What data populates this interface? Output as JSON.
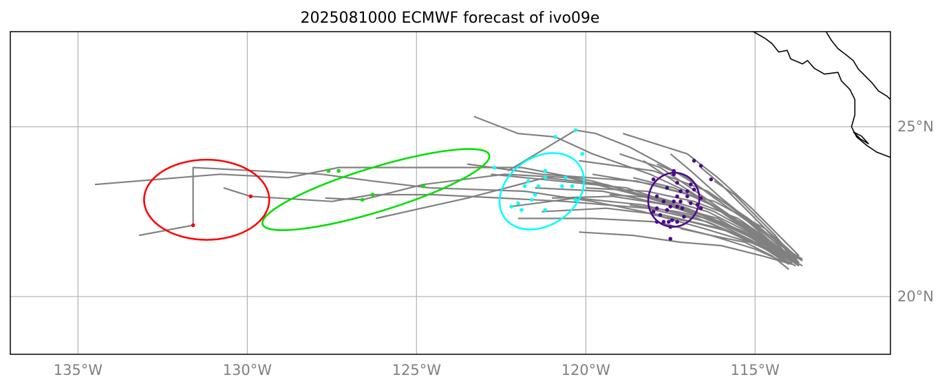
{
  "title": "2025081000 ECMWF forecast of ivo09e",
  "map": {
    "lon_range": [
      -137,
      -111
    ],
    "lat_range": [
      18.3,
      27.8
    ],
    "x_ticks": [
      {
        "lon": -135,
        "label": "135°W"
      },
      {
        "lon": -130,
        "label": "130°W"
      },
      {
        "lon": -125,
        "label": "125°W"
      },
      {
        "lon": -120,
        "label": "120°W"
      },
      {
        "lon": -115,
        "label": "115°W"
      }
    ],
    "y_ticks": [
      {
        "lat": 20,
        "label": "20°N"
      },
      {
        "lat": 25,
        "label": "25°N"
      }
    ],
    "grid": true,
    "colors": {
      "track": "#808080",
      "grid": "#b0b0b0",
      "coast": "#000000",
      "tick_text": "#808080"
    }
  },
  "coastline": [
    [
      [
        -115.05,
        27.8
      ],
      [
        -114.7,
        27.6
      ],
      [
        -114.5,
        27.45
      ],
      [
        -114.3,
        27.2
      ],
      [
        -114.05,
        27.25
      ],
      [
        -113.95,
        27.0
      ],
      [
        -113.6,
        26.85
      ],
      [
        -113.45,
        26.95
      ],
      [
        -113.25,
        26.72
      ],
      [
        -112.95,
        26.55
      ],
      [
        -112.55,
        26.6
      ],
      [
        -112.45,
        26.35
      ],
      [
        -112.2,
        26.1
      ],
      [
        -112.05,
        25.8
      ],
      [
        -112.05,
        25.35
      ],
      [
        -112.15,
        25.0
      ],
      [
        -112.0,
        24.7
      ],
      [
        -111.7,
        24.45
      ],
      [
        -111.4,
        24.25
      ],
      [
        -111.0,
        24.1
      ]
    ],
    [
      [
        -112.1,
        24.85
      ],
      [
        -111.9,
        24.65
      ],
      [
        -111.65,
        24.5
      ],
      [
        -111.85,
        24.72
      ],
      [
        -112.1,
        24.85
      ]
    ],
    [
      [
        -112.9,
        27.8
      ],
      [
        -112.75,
        27.55
      ],
      [
        -112.55,
        27.3
      ],
      [
        -112.35,
        27.15
      ],
      [
        -112.1,
        26.95
      ],
      [
        -111.95,
        26.7
      ],
      [
        -111.75,
        26.5
      ],
      [
        -111.55,
        26.3
      ],
      [
        -111.35,
        26.05
      ],
      [
        -111.1,
        25.9
      ],
      [
        -111.0,
        25.8
      ]
    ]
  ],
  "tracks": [
    [
      [
        -134.5,
        23.3
      ],
      [
        -130.8,
        23.6
      ],
      [
        -128.8,
        23.5
      ],
      [
        -127.3,
        23.8
      ],
      [
        -125,
        23.8
      ],
      [
        -121.9,
        23.8
      ],
      [
        -119.8,
        23.4
      ],
      [
        -118,
        22.9
      ],
      [
        -116.3,
        22.3
      ],
      [
        -114.6,
        21.6
      ],
      [
        -113.7,
        21.0
      ]
    ],
    [
      [
        -133.2,
        21.8
      ],
      [
        -131.6,
        22.1
      ],
      [
        -131.6,
        23.8
      ],
      [
        -127.8,
        23.6
      ],
      [
        -126.3,
        23.4
      ],
      [
        -124.6,
        23.2
      ],
      [
        -121.8,
        23.1
      ],
      [
        -119.8,
        22.8
      ],
      [
        -118.3,
        22.5
      ],
      [
        -116.5,
        22.0
      ],
      [
        -114.5,
        21.4
      ],
      [
        -113.6,
        21.1
      ]
    ],
    [
      [
        -130.7,
        23.2
      ],
      [
        -129.9,
        22.95
      ],
      [
        -127.5,
        22.8
      ],
      [
        -126.3,
        23.0
      ],
      [
        -124.5,
        23.0
      ],
      [
        -122.5,
        22.9
      ],
      [
        -120.6,
        22.8
      ],
      [
        -118.2,
        22.6
      ],
      [
        -116.4,
        22.2
      ],
      [
        -114.8,
        21.5
      ],
      [
        -113.8,
        21.0
      ]
    ],
    [
      [
        -127.7,
        22.9
      ],
      [
        -126.6,
        22.85
      ],
      [
        -124.8,
        23.3
      ],
      [
        -122.4,
        23.6
      ],
      [
        -120.5,
        23.5
      ],
      [
        -118.5,
        23.0
      ],
      [
        -116.8,
        22.5
      ],
      [
        -115.0,
        21.7
      ],
      [
        -114.0,
        21.1
      ]
    ],
    [
      [
        -126.2,
        22.3
      ],
      [
        -123.5,
        22.9
      ],
      [
        -121.2,
        23.5
      ],
      [
        -119.4,
        23.3
      ],
      [
        -117.7,
        22.8
      ],
      [
        -116.0,
        22.1
      ],
      [
        -114.4,
        21.3
      ],
      [
        -113.7,
        20.95
      ]
    ],
    [
      [
        -123.3,
        25.3
      ],
      [
        -122.0,
        24.8
      ],
      [
        -120.9,
        24.7
      ],
      [
        -119.8,
        24.2
      ],
      [
        -118.1,
        23.6
      ],
      [
        -116.6,
        22.9
      ],
      [
        -115.1,
        21.9
      ],
      [
        -114.0,
        21.2
      ]
    ],
    [
      [
        -122.3,
        23.7
      ],
      [
        -120.3,
        24.9
      ],
      [
        -119.7,
        24.8
      ],
      [
        -118.7,
        24.4
      ],
      [
        -117.4,
        23.7
      ],
      [
        -115.8,
        22.7
      ],
      [
        -114.4,
        21.6
      ],
      [
        -113.6,
        21.1
      ]
    ],
    [
      [
        -118.9,
        24.8
      ],
      [
        -117.0,
        24.2
      ],
      [
        -116.1,
        23.5
      ],
      [
        -115.1,
        22.6
      ],
      [
        -114.3,
        21.8
      ],
      [
        -113.7,
        21.2
      ]
    ],
    [
      [
        -120.2,
        24.0
      ],
      [
        -118.0,
        23.7
      ],
      [
        -116.4,
        23.1
      ],
      [
        -115.2,
        22.3
      ],
      [
        -114.2,
        21.5
      ],
      [
        -113.8,
        21.0
      ]
    ],
    [
      [
        -123.5,
        23.9
      ],
      [
        -121.3,
        23.6
      ],
      [
        -118.5,
        23.4
      ],
      [
        -116.2,
        22.8
      ],
      [
        -114.7,
        22.0
      ],
      [
        -113.8,
        21.2
      ]
    ],
    [
      [
        -122.8,
        23.6
      ],
      [
        -120.8,
        23.4
      ],
      [
        -118.8,
        23.2
      ],
      [
        -117.0,
        22.6
      ],
      [
        -115.3,
        21.9
      ],
      [
        -114.1,
        21.2
      ]
    ],
    [
      [
        -121.5,
        23.2
      ],
      [
        -119.5,
        23.1
      ],
      [
        -117.6,
        22.7
      ],
      [
        -115.9,
        22.1
      ],
      [
        -114.6,
        21.5
      ],
      [
        -113.9,
        21.0
      ]
    ],
    [
      [
        -122.2,
        22.65
      ],
      [
        -120.3,
        22.9
      ],
      [
        -118.3,
        22.7
      ],
      [
        -116.7,
        22.3
      ],
      [
        -115.2,
        21.7
      ],
      [
        -114.0,
        21.0
      ]
    ],
    [
      [
        -121.3,
        22.5
      ],
      [
        -119.4,
        22.6
      ],
      [
        -117.7,
        22.4
      ],
      [
        -116.0,
        22.0
      ],
      [
        -114.7,
        21.4
      ],
      [
        -113.8,
        20.9
      ]
    ],
    [
      [
        -120.2,
        21.9
      ],
      [
        -118.6,
        21.8
      ],
      [
        -117.2,
        21.6
      ],
      [
        -116.0,
        21.5
      ],
      [
        -114.8,
        21.2
      ],
      [
        -113.9,
        20.95
      ]
    ],
    [
      [
        -122.0,
        22.3
      ],
      [
        -119.8,
        22.3
      ],
      [
        -117.9,
        22.2
      ],
      [
        -116.3,
        21.8
      ],
      [
        -115.0,
        21.4
      ],
      [
        -114.1,
        21.0
      ]
    ],
    [
      [
        -118.3,
        24.0
      ],
      [
        -117.4,
        23.4
      ],
      [
        -116.3,
        22.7
      ],
      [
        -115.3,
        22.0
      ],
      [
        -114.4,
        21.4
      ],
      [
        -113.8,
        21.1
      ]
    ],
    [
      [
        -117.5,
        24.2
      ],
      [
        -116.9,
        23.7
      ],
      [
        -116.0,
        22.9
      ],
      [
        -115.0,
        22.1
      ],
      [
        -114.3,
        21.5
      ],
      [
        -113.9,
        21.1
      ]
    ],
    [
      [
        -116.6,
        23.8
      ],
      [
        -116.0,
        23.3
      ],
      [
        -115.3,
        22.6
      ],
      [
        -114.6,
        21.9
      ],
      [
        -114.1,
        21.4
      ],
      [
        -113.7,
        21.0
      ]
    ],
    [
      [
        -116.2,
        23.4
      ],
      [
        -115.6,
        23.0
      ],
      [
        -115.0,
        22.4
      ],
      [
        -114.4,
        21.8
      ],
      [
        -114.0,
        21.3
      ],
      [
        -113.6,
        21.05
      ]
    ],
    [
      [
        -120.0,
        23.2
      ],
      [
        -118.2,
        23.1
      ],
      [
        -116.8,
        22.8
      ],
      [
        -115.5,
        22.3
      ],
      [
        -114.5,
        21.6
      ],
      [
        -113.8,
        21.05
      ]
    ],
    [
      [
        -119.3,
        23.0
      ],
      [
        -117.8,
        22.9
      ],
      [
        -116.4,
        22.5
      ],
      [
        -115.2,
        21.9
      ],
      [
        -114.3,
        21.3
      ],
      [
        -113.7,
        20.9
      ]
    ],
    [
      [
        -118.7,
        22.7
      ],
      [
        -117.3,
        22.5
      ],
      [
        -116.0,
        22.2
      ],
      [
        -114.9,
        21.7
      ],
      [
        -114.1,
        21.2
      ],
      [
        -113.6,
        20.9
      ]
    ],
    [
      [
        -119.8,
        23.6
      ],
      [
        -118.0,
        23.3
      ],
      [
        -116.6,
        22.9
      ],
      [
        -115.3,
        22.1
      ],
      [
        -114.4,
        21.4
      ],
      [
        -113.7,
        20.95
      ]
    ],
    [
      [
        -117.9,
        23.9
      ],
      [
        -117.0,
        23.5
      ],
      [
        -116.2,
        22.9
      ],
      [
        -115.2,
        22.2
      ],
      [
        -114.4,
        21.5
      ],
      [
        -113.75,
        21.1
      ]
    ],
    [
      [
        -121.0,
        22.9
      ],
      [
        -119.2,
        22.95
      ],
      [
        -117.6,
        22.7
      ],
      [
        -116.1,
        22.3
      ],
      [
        -114.9,
        21.6
      ],
      [
        -114.0,
        21.0
      ]
    ],
    [
      [
        -118.0,
        22.4
      ],
      [
        -116.9,
        22.2
      ],
      [
        -115.7,
        21.9
      ],
      [
        -114.7,
        21.4
      ],
      [
        -114.0,
        20.95
      ]
    ],
    [
      [
        -117.2,
        22.0
      ],
      [
        -116.3,
        21.8
      ],
      [
        -115.3,
        21.6
      ],
      [
        -114.5,
        21.2
      ],
      [
        -114.0,
        20.8
      ]
    ],
    [
      [
        -119.0,
        24.2
      ],
      [
        -117.8,
        23.8
      ],
      [
        -116.9,
        23.2
      ],
      [
        -115.9,
        22.5
      ],
      [
        -114.9,
        21.8
      ],
      [
        -114.0,
        21.1
      ]
    ],
    [
      [
        -118.6,
        23.5
      ],
      [
        -117.4,
        23.2
      ],
      [
        -116.3,
        22.7
      ],
      [
        -115.1,
        22.0
      ],
      [
        -114.2,
        21.3
      ],
      [
        -113.7,
        20.95
      ]
    ],
    [
      [
        -117.0,
        22.8
      ],
      [
        -116.2,
        22.5
      ],
      [
        -115.3,
        22.0
      ],
      [
        -114.6,
        21.5
      ],
      [
        -114.0,
        21.0
      ]
    ]
  ],
  "point_groups": [
    {
      "color": "#ff0000",
      "ellipse": {
        "cx": -131.2,
        "cy": 22.85,
        "rx": 1.85,
        "ry": 1.18,
        "angle": 0
      },
      "points": [
        [
          -129.9,
          22.95
        ],
        [
          -131.6,
          22.1
        ]
      ]
    },
    {
      "color": "#00e000",
      "ellipse": {
        "cx": -126.2,
        "cy": 23.15,
        "rx": 3.5,
        "ry": 0.65,
        "angle": -17
      },
      "points": [
        [
          -127.6,
          23.7
        ],
        [
          -127.3,
          23.7
        ],
        [
          -126.3,
          23.0
        ],
        [
          -126.6,
          22.85
        ],
        [
          -124.8,
          23.25
        ]
      ]
    },
    {
      "color": "#00ffff",
      "ellipse": {
        "cx": -121.3,
        "cy": 23.1,
        "rx": 1.35,
        "ry": 1.0,
        "angle": -35
      },
      "points": [
        [
          -120.3,
          24.9
        ],
        [
          -120.9,
          24.7
        ],
        [
          -120.1,
          24.2
        ],
        [
          -122.7,
          23.8
        ],
        [
          -121.2,
          23.7
        ],
        [
          -121.2,
          23.5
        ],
        [
          -120.6,
          23.5
        ],
        [
          -121.7,
          23.4
        ],
        [
          -121.4,
          23.25
        ],
        [
          -121.8,
          23.25
        ],
        [
          -120.7,
          23.25
        ],
        [
          -120.4,
          23.25
        ],
        [
          -121.5,
          23.0
        ],
        [
          -121.6,
          22.85
        ],
        [
          -120.3,
          22.85
        ],
        [
          -122.0,
          22.75
        ],
        [
          -122.2,
          22.65
        ],
        [
          -121.9,
          22.55
        ],
        [
          -121.2,
          22.55
        ]
      ]
    },
    {
      "color": "#4b0a8c",
      "ellipse": {
        "cx": -117.4,
        "cy": 22.85,
        "rx": 0.75,
        "ry": 0.8,
        "angle": 15
      },
      "points": [
        [
          -116.8,
          24.0
        ],
        [
          -116.6,
          23.85
        ],
        [
          -117.4,
          23.7
        ],
        [
          -117.4,
          23.6
        ],
        [
          -116.3,
          23.45
        ],
        [
          -118.0,
          23.45
        ],
        [
          -117.3,
          23.35
        ],
        [
          -116.9,
          23.3
        ],
        [
          -117.6,
          23.2
        ],
        [
          -117.2,
          23.1
        ],
        [
          -117.0,
          23.1
        ],
        [
          -116.8,
          23.15
        ],
        [
          -117.9,
          22.95
        ],
        [
          -117.3,
          22.95
        ],
        [
          -117.0,
          22.95
        ],
        [
          -116.6,
          22.9
        ],
        [
          -117.7,
          22.8
        ],
        [
          -117.4,
          22.8
        ],
        [
          -117.2,
          22.8
        ],
        [
          -116.9,
          22.75
        ],
        [
          -116.7,
          22.7
        ],
        [
          -117.5,
          22.65
        ],
        [
          -117.3,
          22.65
        ],
        [
          -117.15,
          22.6
        ],
        [
          -117.9,
          22.6
        ],
        [
          -117.6,
          22.55
        ],
        [
          -116.6,
          22.6
        ],
        [
          -118.0,
          22.5
        ],
        [
          -117.8,
          22.4
        ],
        [
          -117.1,
          22.35
        ],
        [
          -117.45,
          22.25
        ],
        [
          -117.55,
          22.2
        ],
        [
          -117.7,
          22.2
        ],
        [
          -117.3,
          22.2
        ],
        [
          -117.9,
          22.2
        ],
        [
          -117.5,
          22.05
        ],
        [
          -117.5,
          21.7
        ]
      ]
    }
  ]
}
